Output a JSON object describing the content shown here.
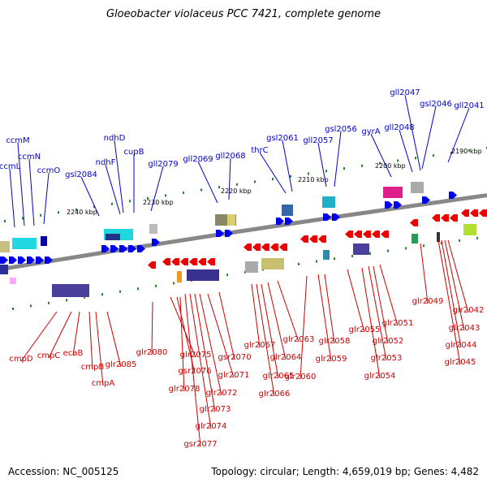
{
  "title": "Gloeobacter violaceus PCC 7421, complete genome",
  "footer": {
    "accession": "Accession: NC_005125",
    "summary": "Topology: circular; Length: 4,659,019 bp; Genes: 4,482"
  },
  "colors": {
    "forward_gene": "#0000ee",
    "reverse_gene": "#ee0000",
    "forward_label": "#0000cc",
    "reverse_label": "#cc0000",
    "backbone": "#888888",
    "tick": "#228822"
  },
  "scale_labels": [
    "2240 kbp",
    "2230 kbp",
    "2220 kbp",
    "2210 kbp",
    "2200 kbp",
    "2190 kbp"
  ],
  "forward_genes": [
    "ccmL",
    "ccmM",
    "ccmN",
    "ccmO",
    "gsl2084",
    "ndhF",
    "ndhD",
    "cupB",
    "gll2079",
    "gll2069",
    "gll2068",
    "thrC",
    "gsl2061",
    "gll2057",
    "gsl2056",
    "gyrA",
    "gll2048",
    "gll2047",
    "gsl2046",
    "gll2041"
  ],
  "reverse_genes": [
    "cmpD",
    "cmpC",
    "ecaB",
    "cmpB",
    "cmpA",
    "glr2085",
    "glr2080",
    "glr2075",
    "gsr2076",
    "glr2078",
    "glr2071",
    "glr2072",
    "glr2073",
    "glr2074",
    "gsr2077",
    "gsr2070",
    "glr2067",
    "glr2065",
    "glr2066",
    "glr2064",
    "glr2063",
    "glr2060",
    "glr2059",
    "glr2058",
    "glr2055",
    "glr2054",
    "glr2053",
    "glr2052",
    "glr2051",
    "glr2049",
    "glr2042",
    "glr2043",
    "glr2044",
    "glr2045"
  ]
}
